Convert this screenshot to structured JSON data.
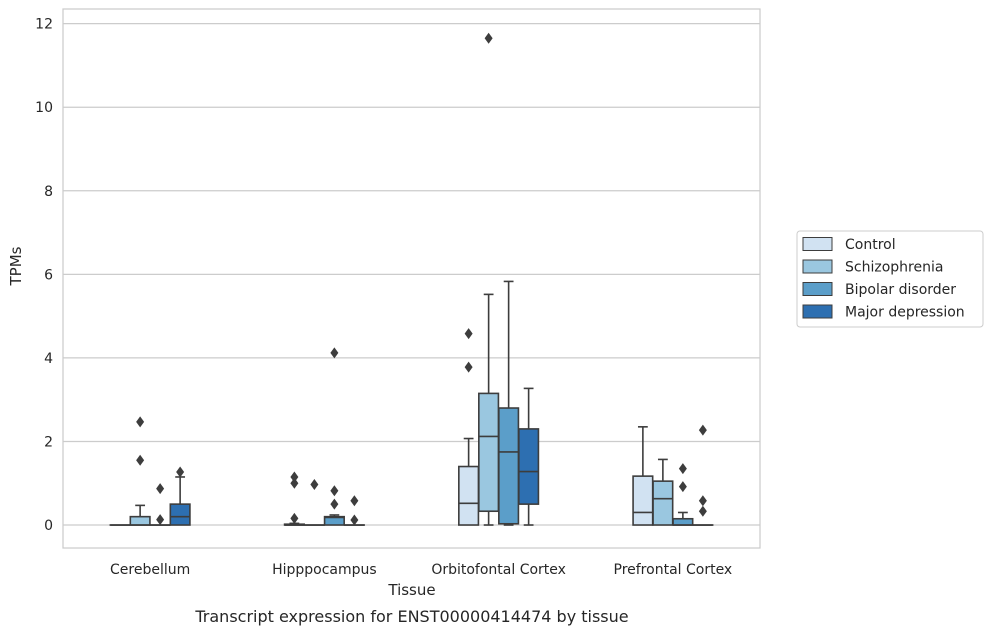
{
  "chart_data": {
    "type": "box",
    "title": "",
    "caption": "Transcript expression for ENST00000414474 by tissue",
    "xlabel": "Tissue",
    "ylabel": "TPMs",
    "ylim": [
      -0.55,
      12.35
    ],
    "yticks": [
      0,
      2,
      4,
      6,
      8,
      10,
      12
    ],
    "grid": "horizontal",
    "legend_position": "right",
    "categories": [
      "Cerebellum",
      "Hipppocampus",
      "Orbitofontal Cortex",
      "Prefrontal Cortex"
    ],
    "series": [
      {
        "name": "Control",
        "color": "#d1e2f2",
        "boxes": [
          {
            "q1": 0,
            "median": 0,
            "q3": 0,
            "whislo": 0,
            "whishi": 0,
            "fliers": []
          },
          {
            "q1": 0,
            "median": 0,
            "q3": 0.02,
            "whislo": 0,
            "whishi": 0.04,
            "fliers": [
              0.16,
              1.0,
              1.15
            ]
          },
          {
            "q1": 0,
            "median": 0.52,
            "q3": 1.4,
            "whislo": 0,
            "whishi": 2.07,
            "fliers": [
              3.78,
              4.58
            ]
          },
          {
            "q1": 0,
            "median": 0.3,
            "q3": 1.17,
            "whislo": 0,
            "whishi": 2.35,
            "fliers": []
          }
        ]
      },
      {
        "name": "Schizophrenia",
        "color": "#9ac7e0",
        "boxes": [
          {
            "q1": 0,
            "median": 0,
            "q3": 0.2,
            "whislo": 0,
            "whishi": 0.47,
            "fliers": [
              1.55,
              2.47
            ]
          },
          {
            "q1": 0,
            "median": 0,
            "q3": 0,
            "whislo": 0,
            "whishi": 0,
            "fliers": [
              0.97
            ]
          },
          {
            "q1": 0.33,
            "median": 2.12,
            "q3": 3.15,
            "whislo": 0,
            "whishi": 5.52,
            "fliers": [
              11.65
            ]
          },
          {
            "q1": 0,
            "median": 0.63,
            "q3": 1.05,
            "whislo": 0,
            "whishi": 1.57,
            "fliers": []
          }
        ]
      },
      {
        "name": "Bipolar disorder",
        "color": "#5b9ec9",
        "boxes": [
          {
            "q1": 0,
            "median": 0,
            "q3": 0,
            "whislo": 0,
            "whishi": 0,
            "fliers": [
              0.13,
              0.87
            ]
          },
          {
            "q1": 0,
            "median": 0.18,
            "q3": 0.2,
            "whislo": 0,
            "whishi": 0.24,
            "fliers": [
              0.5,
              0.82,
              4.12
            ]
          },
          {
            "q1": 0.03,
            "median": 1.75,
            "q3": 2.8,
            "whislo": 0,
            "whishi": 5.83,
            "fliers": []
          },
          {
            "q1": 0,
            "median": 0,
            "q3": 0.15,
            "whislo": 0,
            "whishi": 0.3,
            "fliers": [
              0.92,
              1.35
            ]
          }
        ]
      },
      {
        "name": "Major depression",
        "color": "#2d6fb1",
        "boxes": [
          {
            "q1": 0,
            "median": 0.2,
            "q3": 0.5,
            "whislo": 0,
            "whishi": 1.15,
            "fliers": [
              1.27
            ]
          },
          {
            "q1": 0,
            "median": 0,
            "q3": 0,
            "whislo": 0,
            "whishi": 0,
            "fliers": [
              0.12,
              0.58
            ]
          },
          {
            "q1": 0.5,
            "median": 1.28,
            "q3": 2.3,
            "whislo": 0,
            "whishi": 3.27,
            "fliers": []
          },
          {
            "q1": 0,
            "median": 0,
            "q3": 0,
            "whislo": 0,
            "whishi": 0,
            "fliers": [
              0.33,
              0.58,
              2.27
            ]
          }
        ]
      }
    ]
  }
}
